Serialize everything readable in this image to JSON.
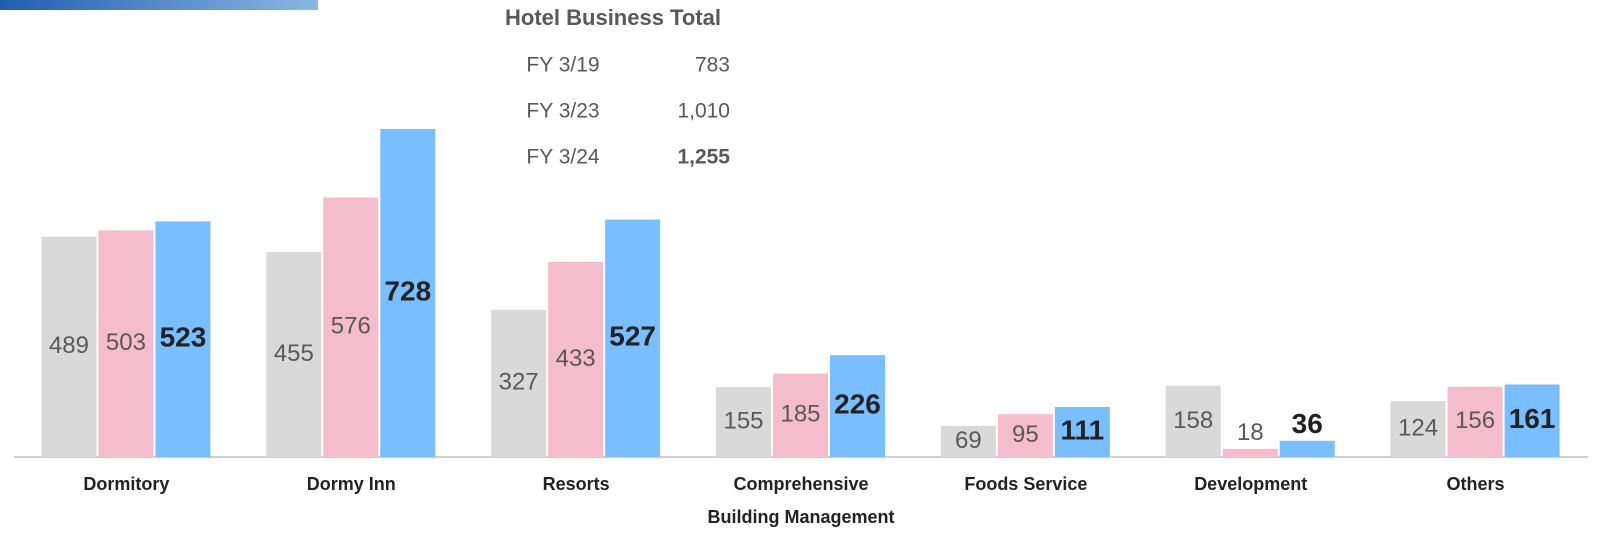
{
  "chart_data": {
    "type": "bar",
    "categories": [
      "Dormitory",
      "Dormy Inn",
      "Resorts",
      "Comprehensive\nBuilding Management",
      "Foods Service",
      "Development",
      "Others"
    ],
    "series": [
      {
        "color": "#d9d9d9",
        "values": [
          489,
          455,
          327,
          155,
          69,
          158,
          124
        ]
      },
      {
        "color": "#f4bccd",
        "values": [
          503,
          576,
          433,
          185,
          95,
          18,
          156
        ]
      },
      {
        "color": "#79bfff",
        "values": [
          523,
          728,
          527,
          226,
          111,
          36,
          161
        ]
      }
    ],
    "ylim": [
      0,
      1000
    ],
    "annotation": {
      "title": "Hotel Business Total",
      "labels": [
        "FY 3/19",
        "FY 3/23",
        "FY 3/24"
      ],
      "values": [
        783,
        1010,
        1255
      ],
      "value_labels": [
        "783",
        "1,010",
        "1,255"
      ]
    }
  }
}
